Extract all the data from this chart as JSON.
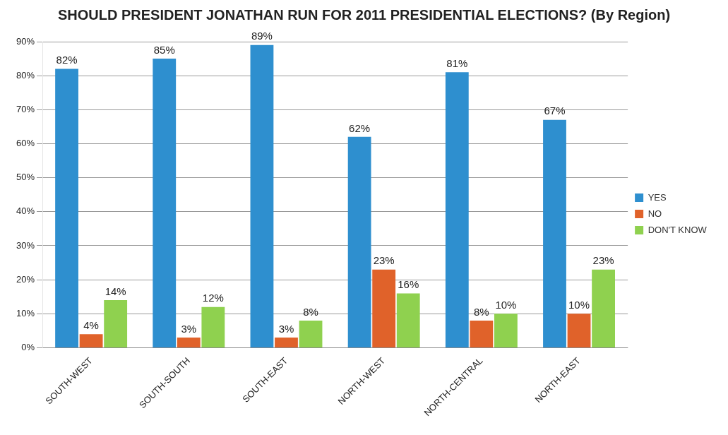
{
  "chart_data": {
    "type": "bar",
    "title": "SHOULD PRESIDENT JONATHAN RUN FOR 2011 PRESIDENTIAL ELECTIONS? (By Region)",
    "categories": [
      "SOUTH-WEST",
      "SOUTH-SOUTH",
      "SOUTH-EAST",
      "NORTH-WEST",
      "NORTH-CENTRAL",
      "NORTH-EAST"
    ],
    "series": [
      {
        "name": "YES",
        "color": "#2e8fcf",
        "values": [
          82,
          85,
          89,
          62,
          81,
          67
        ],
        "value_labels": [
          "82%",
          "85%",
          "89%",
          "62%",
          "81%",
          "67%"
        ]
      },
      {
        "name": "NO",
        "color": "#e0622a",
        "values": [
          4,
          3,
          3,
          23,
          8,
          10
        ],
        "value_labels": [
          "4%",
          "3%",
          "3%",
          "23%",
          "8%",
          "10%"
        ]
      },
      {
        "name": "DON'T KNOW",
        "color": "#8fd14f",
        "values": [
          14,
          12,
          8,
          16,
          10,
          23
        ],
        "value_labels": [
          "14%",
          "12%",
          "8%",
          "16%",
          "10%",
          "23%"
        ]
      }
    ],
    "ylim": [
      0,
      90
    ],
    "yticks": [
      {
        "value": 0,
        "label": "0%"
      },
      {
        "value": 10,
        "label": "10%"
      },
      {
        "value": 20,
        "label": "20%"
      },
      {
        "value": 30,
        "label": "30%"
      },
      {
        "value": 40,
        "label": "40%"
      },
      {
        "value": 50,
        "label": "50%"
      },
      {
        "value": 60,
        "label": "60%"
      },
      {
        "value": 70,
        "label": "70%"
      },
      {
        "value": 80,
        "label": "80%"
      },
      {
        "value": 90,
        "label": "90%"
      }
    ],
    "grid": "y",
    "legend": "right"
  }
}
